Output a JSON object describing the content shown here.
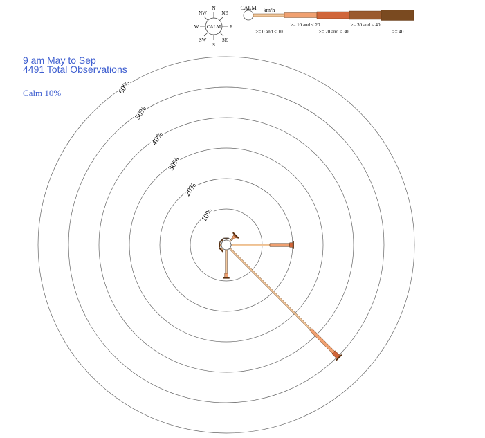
{
  "header": {
    "line1": "9 am  May to Sep",
    "line2": "4491 Total Observations",
    "calm": "Calm 10%"
  },
  "compass": {
    "center_label": "CALM",
    "N": "N",
    "NE": "NE",
    "E": "E",
    "SE": "SE",
    "S": "S",
    "SW": "SW",
    "W": "W",
    "NW": "NW"
  },
  "legend": {
    "calm_label": "CALM",
    "unit": "km/h",
    "bins": [
      {
        "label": ">= 0 and < 10",
        "color": "#f3c89b"
      },
      {
        "label": ">= 10 and < 20",
        "color": "#f0a070"
      },
      {
        "label": ">= 20 and < 30",
        "color": "#d0663a"
      },
      {
        "label": ">= 30 and < 40",
        "color": "#9a5a2e"
      },
      {
        "label": ">= 40",
        "color": "#7a4a20"
      }
    ]
  },
  "colors": {
    "accent_text": "#3f5fd0",
    "ring": "#666666",
    "outline": "#5a3010"
  },
  "chart_data": {
    "type": "wind-rose",
    "title": "9 am  May to Sep",
    "subtitle": "4491 Total Observations",
    "calm_percent": 10,
    "ring_labels": [
      "10%",
      "20%",
      "30%",
      "40%",
      "50%",
      "60%"
    ],
    "ring_values": [
      10,
      20,
      30,
      40,
      50,
      60
    ],
    "rmax": 60,
    "bins": [
      ">= 0 and < 10",
      ">= 10 and < 20",
      ">= 20 and < 30",
      ">= 30 and < 40",
      ">= 40"
    ],
    "series": [
      {
        "direction": "N",
        "angle": 0,
        "segments": [
          0.3,
          0,
          0,
          0,
          0
        ]
      },
      {
        "direction": "NE",
        "angle": 45,
        "segments": [
          1.3,
          0.8,
          0.5,
          0,
          0
        ]
      },
      {
        "direction": "E",
        "angle": 90,
        "segments": [
          12.5,
          6.5,
          1.2,
          0,
          0
        ]
      },
      {
        "direction": "SE",
        "angle": 135,
        "segments": [
          37.5,
          10.5,
          2.5,
          0,
          0
        ]
      },
      {
        "direction": "S",
        "angle": 180,
        "segments": [
          7.5,
          1.5,
          0,
          0,
          0
        ]
      },
      {
        "direction": "SW",
        "angle": 225,
        "segments": [
          0.5,
          0,
          0,
          0,
          0
        ]
      },
      {
        "direction": "W",
        "angle": 270,
        "segments": [
          0.4,
          0,
          0,
          0,
          0
        ]
      },
      {
        "direction": "NW",
        "angle": 315,
        "segments": [
          0.3,
          0,
          0,
          0,
          0
        ]
      }
    ]
  }
}
